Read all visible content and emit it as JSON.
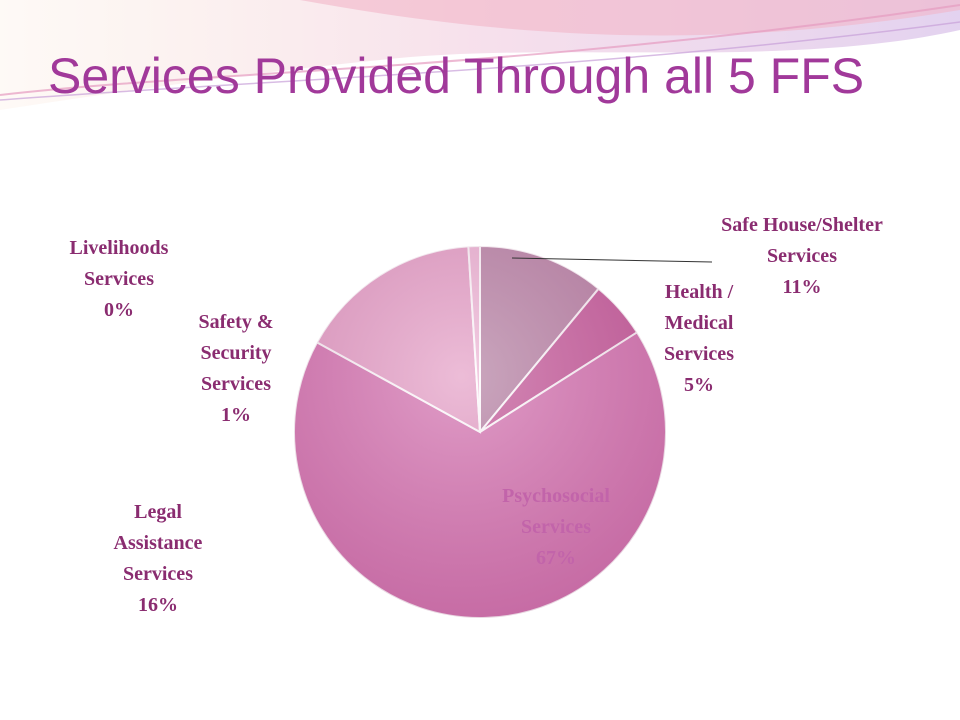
{
  "chart_data": {
    "type": "pie",
    "title": "Services Provided Through all 5 FFS",
    "categories": [
      "Safe House/Shelter Services",
      "Health / Medical Services",
      "Psychosocial Services",
      "Legal Assistance Services",
      "Safety & Security Services",
      "Livelihoods Services"
    ],
    "values": [
      11,
      5,
      67,
      16,
      1,
      0
    ],
    "value_labels": [
      "11%",
      "5%",
      "67%",
      "16%",
      "1%",
      "0%"
    ],
    "colors": [
      "#b98aa9",
      "#c7639f",
      "#d67cb5",
      "#e6a6ca",
      "#efbcd9",
      "#f7e4ef"
    ]
  }
}
